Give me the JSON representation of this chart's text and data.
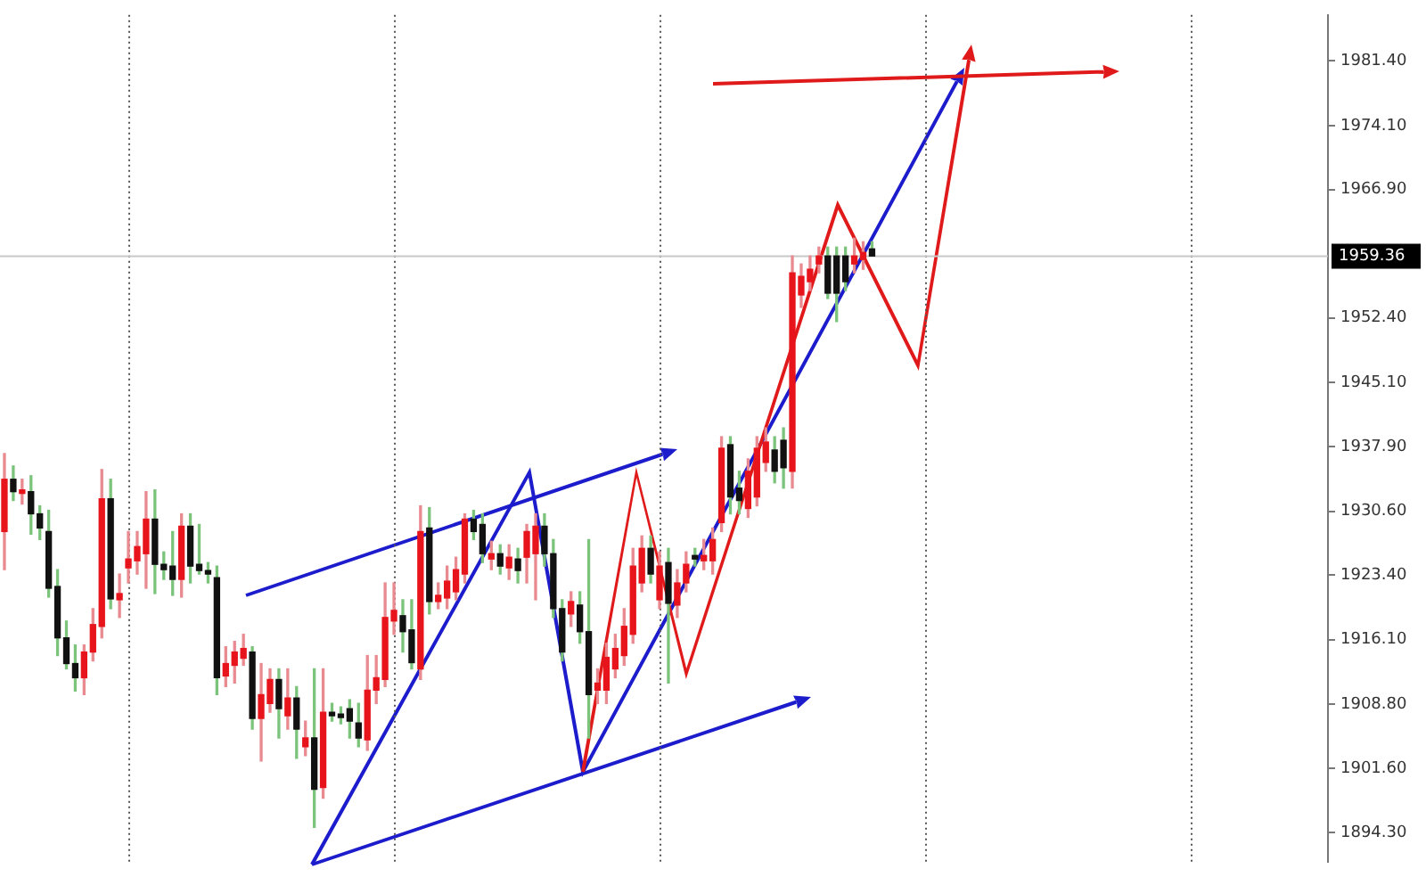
{
  "chart_data": {
    "type": "candlestick",
    "categories": [
      null,
      null,
      null,
      null,
      null,
      null,
      null,
      null,
      null,
      null,
      null,
      null,
      null,
      null,
      null,
      null,
      null,
      null,
      null,
      null,
      null,
      null,
      null,
      null,
      null,
      null,
      null,
      null,
      null,
      null,
      null,
      null,
      null,
      null,
      null,
      null,
      null,
      null,
      null,
      null,
      null,
      null,
      null,
      null,
      null,
      null,
      null,
      null,
      null,
      null,
      null,
      null,
      null,
      null,
      null,
      null,
      null,
      null,
      null,
      null,
      null,
      null,
      null,
      null,
      null,
      null,
      null,
      null,
      null,
      null,
      null,
      null,
      null,
      null,
      null,
      null,
      null,
      null,
      null,
      null,
      null,
      null,
      null,
      null,
      null,
      null,
      null,
      null,
      null,
      null,
      null,
      null,
      null,
      null,
      null,
      null,
      null,
      null,
      null,
      null,
      null,
      null,
      null,
      null,
      null,
      null,
      null,
      null,
      null,
      null,
      null,
      null,
      null,
      null,
      null,
      null,
      null,
      null,
      null,
      null,
      null,
      null,
      null,
      null,
      null,
      null,
      null,
      null,
      null,
      null,
      null,
      null,
      null,
      null,
      null,
      null,
      null,
      null,
      null,
      null,
      null,
      null,
      null,
      null,
      null,
      null,
      null,
      null,
      null,
      null
    ],
    "ohlc": [
      [
        1928.3,
        1937.1,
        1924.0,
        1934.2
      ],
      [
        1934.2,
        1935.7,
        1931.8,
        1932.8
      ],
      [
        1932.6,
        1934.2,
        1931.4,
        1933.0
      ],
      [
        1932.8,
        1934.6,
        1928.0,
        1930.3
      ],
      [
        1930.3,
        1931.2,
        1927.4,
        1928.7
      ],
      [
        1928.3,
        1930.7,
        1920.9,
        1921.9
      ],
      [
        1922.1,
        1924.0,
        1914.3,
        1916.3
      ],
      [
        1916.3,
        1918.2,
        1912.8,
        1913.4
      ],
      [
        1913.4,
        1915.5,
        1910.3,
        1911.8
      ],
      [
        1911.8,
        1915.5,
        1909.9,
        1914.7
      ],
      [
        1914.7,
        1919.6,
        1913.7,
        1917.8
      ],
      [
        1917.6,
        1935.3,
        1916.3,
        1932.0
      ],
      [
        1932.0,
        1934.2,
        1919.6,
        1920.7
      ],
      [
        1920.6,
        1923.5,
        1918.6,
        1921.3
      ],
      [
        1924.2,
        1928.3,
        1922.5,
        1925.2
      ],
      [
        1925.0,
        1928.3,
        1923.5,
        1926.6
      ],
      [
        1925.8,
        1932.8,
        1921.9,
        1929.7
      ],
      [
        1929.7,
        1933.0,
        1921.3,
        1924.6
      ],
      [
        1924.6,
        1926.0,
        1922.9,
        1924.0
      ],
      [
        1924.4,
        1928.3,
        1921.1,
        1922.9
      ],
      [
        1922.9,
        1930.3,
        1920.9,
        1928.9
      ],
      [
        1928.9,
        1930.3,
        1922.5,
        1924.4
      ],
      [
        1924.6,
        1929.1,
        1923.5,
        1923.9
      ],
      [
        1923.9,
        1924.8,
        1922.5,
        1923.5
      ],
      [
        1923.1,
        1924.4,
        1909.9,
        1911.8
      ],
      [
        1912.0,
        1915.3,
        1910.8,
        1913.4
      ],
      [
        1913.2,
        1915.9,
        1911.2,
        1914.7
      ],
      [
        1914.0,
        1916.7,
        1913.2,
        1915.1
      ],
      [
        1914.7,
        1915.3,
        1906.0,
        1907.2
      ],
      [
        1907.2,
        1913.4,
        1902.4,
        1909.9
      ],
      [
        1908.9,
        1912.8,
        1907.9,
        1911.6
      ],
      [
        1911.6,
        1912.8,
        1905.0,
        1908.3
      ],
      [
        1907.5,
        1912.8,
        1906.0,
        1909.5
      ],
      [
        1909.5,
        1910.8,
        1902.7,
        1906.0
      ],
      [
        1904.0,
        1906.9,
        1903.0,
        1905.0
      ],
      [
        1905.0,
        1912.8,
        1894.9,
        1899.2
      ],
      [
        1899.4,
        1912.8,
        1898.2,
        1907.9
      ],
      [
        1907.9,
        1908.9,
        1906.9,
        1907.5
      ],
      [
        1907.7,
        1908.5,
        1906.6,
        1907.3
      ],
      [
        1908.3,
        1909.3,
        1905.0,
        1906.9
      ],
      [
        1906.7,
        1908.9,
        1904.0,
        1905.0
      ],
      [
        1904.8,
        1914.3,
        1903.6,
        1910.4
      ],
      [
        1910.4,
        1914.3,
        1908.9,
        1911.8
      ],
      [
        1911.6,
        1922.5,
        1910.8,
        1918.6
      ],
      [
        1918.2,
        1922.5,
        1916.7,
        1919.4
      ],
      [
        1918.8,
        1920.6,
        1914.7,
        1917.0
      ],
      [
        1917.2,
        1920.6,
        1912.8,
        1913.5
      ],
      [
        1912.8,
        1931.2,
        1911.6,
        1928.3
      ],
      [
        1928.7,
        1931.0,
        1919.0,
        1920.4
      ],
      [
        1920.4,
        1922.5,
        1919.6,
        1921.1
      ],
      [
        1920.8,
        1924.4,
        1919.6,
        1922.7
      ],
      [
        1921.5,
        1925.4,
        1920.6,
        1924.0
      ],
      [
        1923.5,
        1930.3,
        1922.5,
        1929.7
      ],
      [
        1929.7,
        1930.7,
        1927.4,
        1928.3
      ],
      [
        1929.1,
        1930.3,
        1924.8,
        1925.8
      ],
      [
        1925.2,
        1927.2,
        1924.0,
        1925.8
      ],
      [
        1925.8,
        1926.8,
        1923.5,
        1924.4
      ],
      [
        1924.2,
        1926.8,
        1922.9,
        1925.4
      ],
      [
        1925.2,
        1926.4,
        1922.5,
        1923.9
      ],
      [
        1925.4,
        1929.1,
        1922.5,
        1928.3
      ],
      [
        1925.8,
        1930.3,
        1920.6,
        1928.9
      ],
      [
        1928.9,
        1930.3,
        1924.4,
        1925.8
      ],
      [
        1925.8,
        1927.4,
        1918.6,
        1919.6
      ],
      [
        1919.6,
        1920.6,
        1913.7,
        1914.7
      ],
      [
        1919.0,
        1921.5,
        1917.6,
        1920.4
      ],
      [
        1920.0,
        1921.5,
        1915.7,
        1917.0
      ],
      [
        1917.0,
        1927.4,
        1905.0,
        1909.9
      ],
      [
        1910.4,
        1912.8,
        1908.9,
        1911.2
      ],
      [
        1910.4,
        1915.7,
        1908.9,
        1914.1
      ],
      [
        1912.8,
        1916.7,
        1911.8,
        1915.1
      ],
      [
        1914.3,
        1919.6,
        1913.2,
        1917.6
      ],
      [
        1916.7,
        1926.4,
        1915.7,
        1924.4
      ],
      [
        1922.5,
        1927.8,
        1921.5,
        1926.4
      ],
      [
        1926.4,
        1927.8,
        1922.5,
        1923.5
      ],
      [
        1920.6,
        1926.0,
        1919.6,
        1924.4
      ],
      [
        1924.8,
        1926.4,
        1911.2,
        1920.2
      ],
      [
        1920.0,
        1924.0,
        1918.6,
        1922.5
      ],
      [
        1922.5,
        1926.0,
        1921.5,
        1924.6
      ],
      [
        1925.6,
        1926.4,
        1924.4,
        1925.2
      ],
      [
        1925.0,
        1927.4,
        1924.0,
        1925.6
      ],
      [
        1925.0,
        1928.7,
        1923.5,
        1927.4
      ],
      [
        1929.3,
        1939.0,
        1928.3,
        1937.7
      ],
      [
        1938.1,
        1939.0,
        1930.3,
        1932.2
      ],
      [
        1933.2,
        1935.1,
        1930.3,
        1931.8
      ],
      [
        1930.9,
        1936.5,
        1929.9,
        1935.1
      ],
      [
        1932.2,
        1939.0,
        1931.2,
        1937.7
      ],
      [
        1936.1,
        1940.0,
        1935.1,
        1938.4
      ],
      [
        1937.5,
        1939.0,
        1933.8,
        1935.1
      ],
      [
        1938.6,
        1940.0,
        1933.2,
        1935.5
      ],
      [
        1935.1,
        1959.4,
        1933.2,
        1957.5
      ],
      [
        1955.0,
        1958.5,
        1953.6,
        1957.1
      ],
      [
        1956.5,
        1959.4,
        1955.5,
        1957.9
      ],
      [
        1958.5,
        1960.4,
        1957.5,
        1959.4
      ],
      [
        1959.4,
        1960.4,
        1954.6,
        1955.2
      ],
      [
        1959.4,
        1960.4,
        1952.0,
        1955.2
      ],
      [
        1959.4,
        1960.4,
        1955.5,
        1956.5
      ],
      [
        1958.5,
        1961.4,
        1957.5,
        1959.4
      ],
      [
        1959.0,
        1961.0,
        1957.9,
        1959.8
      ],
      [
        1960.2,
        1961.0,
        1959.4,
        1959.4
      ],
      null,
      null,
      null,
      null,
      null,
      null,
      null,
      null,
      null,
      null,
      null,
      null,
      null,
      null,
      null,
      null,
      null,
      null,
      null,
      null,
      null,
      null,
      null,
      null,
      null,
      null,
      null,
      null,
      null,
      null,
      null,
      null,
      null,
      null,
      null,
      null,
      null,
      null,
      null,
      null,
      null,
      null,
      null,
      null,
      null,
      null,
      null,
      null,
      null,
      null,
      null
    ],
    "colors": [
      "#e8141b",
      "#111111",
      "#e8141b",
      "#111111",
      "#111111",
      "#111111",
      "#111111",
      "#111111",
      "#111111",
      "#e8141b",
      "#e8141b",
      "#e8141b",
      "#111111",
      "#e8141b",
      "#e8141b",
      "#e8141b",
      "#e8141b",
      "#111111",
      "#111111",
      "#111111",
      "#e8141b",
      "#111111",
      "#111111",
      "#111111",
      "#111111",
      "#e8141b",
      "#e8141b",
      "#e8141b",
      "#111111",
      "#e8141b",
      "#e8141b",
      "#111111",
      "#e8141b",
      "#111111",
      "#e8141b",
      "#111111",
      "#e8141b",
      "#111111",
      "#111111",
      "#111111",
      "#111111",
      "#e8141b",
      "#e8141b",
      "#e8141b",
      "#e8141b",
      "#111111",
      "#111111",
      "#e8141b",
      "#111111",
      "#e8141b",
      "#e8141b",
      "#e8141b",
      "#e8141b",
      "#111111",
      "#111111",
      "#e8141b",
      "#111111",
      "#e8141b",
      "#111111",
      "#e8141b",
      "#e8141b",
      "#111111",
      "#111111",
      "#111111",
      "#e8141b",
      "#111111",
      "#111111",
      "#e8141b",
      "#e8141b",
      "#e8141b",
      "#e8141b",
      "#e8141b",
      "#e8141b",
      "#111111",
      "#e8141b",
      "#111111",
      "#e8141b",
      "#e8141b",
      "#111111",
      "#e8141b",
      "#e8141b",
      "#e8141b",
      "#111111",
      "#111111",
      "#e8141b",
      "#e8141b",
      "#e8141b",
      "#111111",
      "#111111",
      "#e8141b",
      "#e8141b",
      "#e8141b",
      "#e8141b",
      "#111111",
      "#111111",
      "#111111",
      "#e8141b",
      "#e8141b",
      "#111111",
      null,
      null,
      null,
      null,
      null,
      null,
      null,
      null,
      null,
      null,
      null,
      null,
      null,
      null,
      null,
      null,
      null,
      null,
      null,
      null,
      null,
      null,
      null,
      null,
      null,
      null,
      null,
      null,
      null,
      null,
      null,
      null,
      null,
      null,
      null,
      null,
      null,
      null,
      null,
      null,
      null,
      null,
      null,
      null,
      null,
      null,
      null,
      null,
      null,
      null,
      null
    ],
    "ylim": [
      1891.0,
      1986.6
    ],
    "yticks": [
      {
        "value": 1894.3,
        "label": "1894.30"
      },
      {
        "value": 1901.6,
        "label": "1901.60"
      },
      {
        "value": 1908.8,
        "label": "1908.80"
      },
      {
        "value": 1916.1,
        "label": "1916.10"
      },
      {
        "value": 1923.4,
        "label": "1923.40"
      },
      {
        "value": 1930.6,
        "label": "1930.60"
      },
      {
        "value": 1937.9,
        "label": "1937.90"
      },
      {
        "value": 1945.1,
        "label": "1945.10"
      },
      {
        "value": 1952.4,
        "label": "1952.40"
      },
      {
        "value": 1966.9,
        "label": "1966.90"
      },
      {
        "value": 1974.1,
        "label": "1974.10"
      },
      {
        "value": 1981.4,
        "label": "1981.40"
      }
    ],
    "tick_labels": "y",
    "ref_lines": [
      {
        "axis": "y",
        "value": 1959.36,
        "label": "1959.36",
        "color": "#c8c8c8"
      }
    ]
  }
}
